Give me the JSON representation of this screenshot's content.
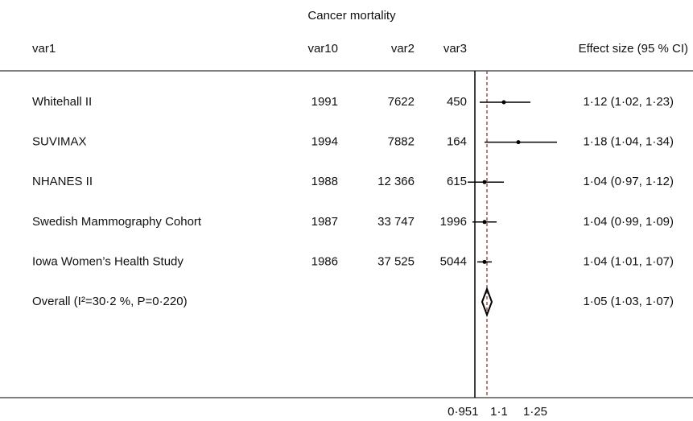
{
  "chart_data": {
    "type": "forest",
    "title": "Cancer mortality",
    "columns": [
      "var1",
      "var10",
      "var2",
      "var3",
      "Effect size (95 % CI)"
    ],
    "categories": [
      "Whitehall II",
      "SUVIMAX",
      "NHANES II",
      "Swedish Mammography Cohort",
      "Iowa Women’s Health Study",
      "Overall (I²=30·2 %, P=0·220)"
    ],
    "var10": [
      "1991",
      "1994",
      "1988",
      "1987",
      "1986"
    ],
    "var2": [
      "7622",
      "7882",
      "12 366",
      "33 747",
      "37 525"
    ],
    "var3": [
      "450",
      "164",
      "615",
      "1996",
      "5044"
    ],
    "values": [
      1.12,
      1.18,
      1.04,
      1.04,
      1.04,
      1.05
    ],
    "lower": [
      1.02,
      1.04,
      0.97,
      0.99,
      1.01,
      1.03
    ],
    "upper": [
      1.23,
      1.34,
      1.12,
      1.09,
      1.07,
      1.07
    ],
    "value_labels": [
      "1·12 (1·02, 1·23)",
      "1·18 (1·04, 1·34)",
      "1·04 (0·97, 1·12)",
      "1·04 (0·99, 1·09)",
      "1·04 (1·01, 1·07)",
      "1·05 (1·03, 1·07)"
    ],
    "reference_line": 1,
    "xlim": [
      0.92,
      1.36
    ],
    "xticks": [
      {
        "value": 0.951,
        "label": "0·951"
      },
      {
        "value": 1.1,
        "label": "1·1"
      },
      {
        "value": 1.25,
        "label": "1·25"
      }
    ],
    "color": "#000000",
    "overall_line_color": "#8b3a3a"
  }
}
